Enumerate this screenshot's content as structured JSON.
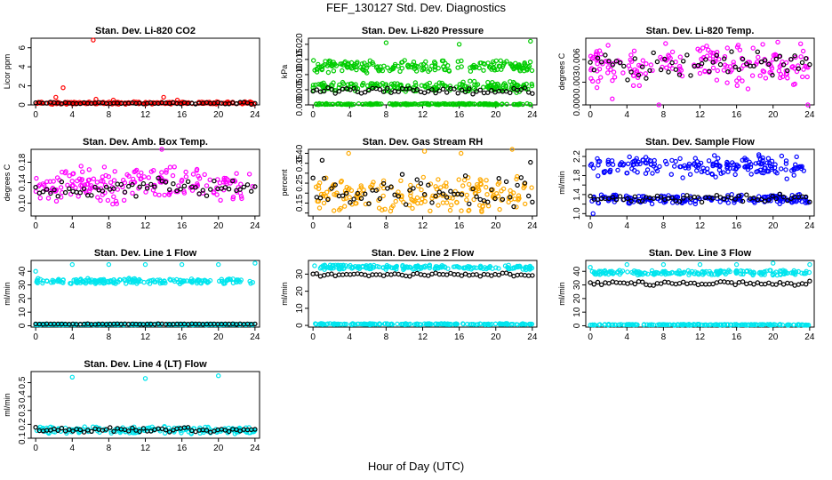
{
  "figure": {
    "title": "FEF_130127  Std. Dev. Diagnostics",
    "xlabel": "Hour of Day (UTC)"
  },
  "chart_data": [
    {
      "type": "scatter",
      "title": "Stan. Dev. Li-820 CO2",
      "ylabel": "Licor ppm",
      "xlim": [
        -0.5,
        24.5
      ],
      "ylim": [
        0,
        7
      ],
      "xticks": [
        0,
        4,
        8,
        12,
        16,
        20,
        24
      ],
      "yticks": [
        0,
        2,
        4,
        6
      ],
      "ytick_labels": [
        "0",
        "2",
        "4",
        "6"
      ],
      "series": [
        {
          "color": "#ff0000",
          "band_low": 0.05,
          "band_high": 0.35,
          "outliers": [
            [
              6.3,
              6.8
            ],
            [
              3.0,
              1.8
            ],
            [
              2.2,
              0.8
            ],
            [
              14,
              0.8
            ],
            [
              6.6,
              0.6
            ],
            [
              15.5,
              0.5
            ],
            [
              8.5,
              0.5
            ]
          ]
        },
        {
          "color": "#000000",
          "band_low": 0.05,
          "band_high": 0.3
        }
      ]
    },
    {
      "type": "scatter",
      "title": "Stan. Dev. Li-820 Pressure",
      "ylabel": "kPa",
      "xlim": [
        -0.5,
        24.5
      ],
      "ylim": [
        0,
        0.022
      ],
      "xticks": [
        0,
        4,
        8,
        12,
        16,
        20,
        24
      ],
      "yticks": [
        0,
        0.005,
        0.01,
        0.015,
        0.02
      ],
      "ytick_labels": [
        "0.000",
        "0.005",
        "0.010",
        "0.015",
        "0.020"
      ],
      "series": [
        {
          "color": "#00cc00",
          "band_low": 0.0105,
          "band_high": 0.015,
          "outliers": [
            [
              8,
              0.0205
            ],
            [
              23.8,
              0.021
            ],
            [
              16,
              0.02
            ]
          ]
        },
        {
          "color": "#00cc00",
          "band_low": 0.004,
          "band_high": 0.008
        },
        {
          "color": "#00cc00",
          "band_low": 0.0,
          "band_high": 0.0005
        },
        {
          "color": "#000000",
          "band_low": 0.003,
          "band_high": 0.006
        }
      ]
    },
    {
      "type": "scatter",
      "title": "Stan. Dev. Li-820 Temp.",
      "ylabel": "degrees C",
      "xlim": [
        -0.5,
        24.5
      ],
      "ylim": [
        0,
        0.0088
      ],
      "xticks": [
        0,
        4,
        8,
        12,
        16,
        20,
        24
      ],
      "yticks": [
        0,
        0.003,
        0.006
      ],
      "ytick_labels": [
        "0.000",
        "0.003",
        "0.006"
      ],
      "series": [
        {
          "color": "#ff00ff",
          "band_low": 0.002,
          "band_high": 0.0085,
          "outliers": [
            [
              23.8,
              0.0
            ],
            [
              7.5,
              0.0
            ],
            [
              2.4,
              0.0008
            ]
          ]
        },
        {
          "color": "#000000",
          "band_low": 0.003,
          "band_high": 0.0075
        }
      ]
    },
    {
      "type": "scatter",
      "title": "Stan. Dev. Amb. Box Temp.",
      "ylabel": "degrees C",
      "xlim": [
        -0.5,
        24.5
      ],
      "ylim": [
        0.075,
        0.205
      ],
      "xticks": [
        0,
        4,
        8,
        12,
        16,
        20,
        24
      ],
      "yticks": [
        0.1,
        0.14,
        0.18
      ],
      "ytick_labels": [
        "0.10",
        "0.14",
        "0.18"
      ],
      "series": [
        {
          "color": "#ff00ff",
          "band_low": 0.095,
          "band_high": 0.175,
          "outliers": [
            [
              13.8,
              0.205
            ]
          ]
        },
        {
          "color": "#000000",
          "band_low": 0.11,
          "band_high": 0.15
        }
      ]
    },
    {
      "type": "scatter",
      "title": "Stan. Dev. Gas Stream RH",
      "ylabel": "percent",
      "xlim": [
        -0.5,
        24.5
      ],
      "ylim": [
        0.085,
        0.42
      ],
      "xticks": [
        0,
        4,
        8,
        12,
        16,
        20,
        24
      ],
      "yticks": [
        0.1,
        0.15,
        0.2,
        0.25,
        0.3,
        0.35,
        0.4
      ],
      "ytick_labels": [
        "",
        "0.15",
        "",
        "0.25",
        "",
        "0.35",
        "0.40"
      ],
      "series": [
        {
          "color": "#ffaa00",
          "band_low": 0.095,
          "band_high": 0.3,
          "outliers": [
            [
              3.9,
              0.4
            ],
            [
              12.2,
              0.41
            ],
            [
              21.8,
              0.42
            ],
            [
              16.2,
              0.4
            ]
          ]
        },
        {
          "color": "#000000",
          "band_low": 0.12,
          "band_high": 0.3,
          "outliers": [
            [
              1,
              0.365
            ],
            [
              23.8,
              0.355
            ]
          ]
        }
      ]
    },
    {
      "type": "scatter",
      "title": "Stan. Dev. Sample Flow",
      "ylabel": "ml/min",
      "xlim": [
        -0.5,
        24.5
      ],
      "ylim": [
        0.95,
        2.35
      ],
      "xticks": [
        0,
        4,
        8,
        12,
        16,
        20,
        24
      ],
      "yticks": [
        1.0,
        1.2,
        1.4,
        1.6,
        1.8,
        2.0,
        2.2
      ],
      "ytick_labels": [
        "1.0",
        "",
        "1.4",
        "",
        "1.8",
        "",
        "2.2"
      ],
      "series": [
        {
          "color": "#0000ff",
          "band_low": 1.72,
          "band_high": 2.25
        },
        {
          "color": "#0000ff",
          "band_low": 1.2,
          "band_high": 1.42,
          "outliers": [
            [
              0.3,
              1.0
            ]
          ]
        },
        {
          "color": "#000000",
          "band_low": 1.22,
          "band_high": 1.42
        }
      ]
    },
    {
      "type": "scatter",
      "title": "Stan. Dev. Line 1 Flow",
      "ylabel": "ml/min",
      "xlim": [
        -0.5,
        24.5
      ],
      "ylim": [
        -1,
        48
      ],
      "xticks": [
        0,
        4,
        8,
        12,
        16,
        20,
        24
      ],
      "yticks": [
        0,
        10,
        20,
        30,
        40
      ],
      "ytick_labels": [
        "0",
        "10",
        "20",
        "30",
        "40"
      ],
      "series": [
        {
          "color": "#00e5ee",
          "band_low": 30.5,
          "band_high": 35,
          "outliers": [
            [
              0,
              40
            ],
            [
              4,
              45
            ],
            [
              8,
              45
            ],
            [
              12,
              45
            ],
            [
              16,
              45
            ],
            [
              20,
              45
            ],
            [
              24,
              46
            ]
          ]
        },
        {
          "color": "#00e5ee",
          "band_low": 0.5,
          "band_high": 1.5
        },
        {
          "color": "#000000",
          "band_low": 1.0,
          "band_high": 1.5
        }
      ]
    },
    {
      "type": "scatter",
      "title": "Stan. Dev. Line 2 Flow",
      "ylabel": "ml/min",
      "xlim": [
        -0.5,
        24.5
      ],
      "ylim": [
        -1,
        38
      ],
      "xticks": [
        0,
        4,
        8,
        12,
        16,
        20,
        24
      ],
      "yticks": [
        0,
        10,
        20,
        30
      ],
      "ytick_labels": [
        "0",
        "10",
        "20",
        "30"
      ],
      "series": [
        {
          "color": "#00e5ee",
          "band_low": 32.5,
          "band_high": 35.5
        },
        {
          "color": "#000000",
          "band_low": 28.5,
          "band_high": 30.8
        },
        {
          "color": "#00e5ee",
          "band_low": 0.3,
          "band_high": 1.2
        }
      ]
    },
    {
      "type": "scatter",
      "title": "Stan. Dev. Line 3 Flow",
      "ylabel": "ml/min",
      "xlim": [
        -0.5,
        24.5
      ],
      "ylim": [
        -1,
        48
      ],
      "xticks": [
        0,
        4,
        8,
        12,
        16,
        20,
        24
      ],
      "yticks": [
        0,
        10,
        20,
        30,
        40
      ],
      "ytick_labels": [
        "0",
        "10",
        "20",
        "30",
        "40"
      ],
      "series": [
        {
          "color": "#00e5ee",
          "band_low": 37,
          "band_high": 41,
          "outliers": [
            [
              0,
              43
            ],
            [
              4,
              45
            ],
            [
              8,
              45
            ],
            [
              12,
              45
            ],
            [
              16,
              45
            ],
            [
              20,
              46
            ],
            [
              24,
              45
            ]
          ]
        },
        {
          "color": "#000000",
          "band_low": 29.5,
          "band_high": 33
        },
        {
          "color": "#00e5ee",
          "band_low": 0.3,
          "band_high": 1.2
        }
      ]
    },
    {
      "type": "scatter",
      "title": "Stan. Dev. Line 4 (LT) Flow",
      "ylabel": "ml/min",
      "xlim": [
        -0.5,
        24.5
      ],
      "ylim": [
        0.1,
        0.58
      ],
      "xticks": [
        0,
        4,
        8,
        12,
        16,
        20,
        24
      ],
      "yticks": [
        0.1,
        0.2,
        0.3,
        0.4,
        0.5
      ],
      "ytick_labels": [
        "0.1",
        "0.2",
        "0.3",
        "0.4",
        "0.5"
      ],
      "series": [
        {
          "color": "#00e5ee",
          "band_low": 0.13,
          "band_high": 0.19,
          "outliers": [
            [
              4,
              0.54
            ],
            [
              12,
              0.53
            ],
            [
              20,
              0.55
            ]
          ]
        },
        {
          "color": "#000000",
          "band_low": 0.14,
          "band_high": 0.18
        }
      ]
    }
  ]
}
